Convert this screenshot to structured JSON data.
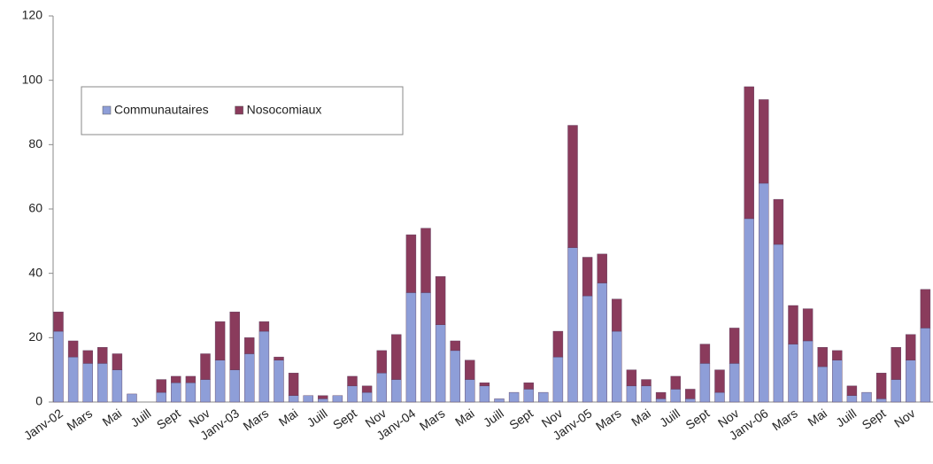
{
  "chart_data": {
    "type": "stacked_bar",
    "categories": [
      "Janv-02",
      null,
      "Mars",
      null,
      "Mai",
      null,
      "Juill",
      null,
      "Sept",
      null,
      "Nov",
      null,
      "Janv-03",
      null,
      "Mars",
      null,
      "Mai",
      null,
      "Juill",
      null,
      "Sept",
      null,
      "Nov",
      null,
      "Janv-04",
      null,
      "Mars",
      null,
      "Mai",
      null,
      "Juill",
      null,
      "Sept",
      null,
      "Nov",
      null,
      "Janv-05",
      null,
      "Mars",
      null,
      "Mai",
      null,
      "Juill",
      null,
      "Sept",
      null,
      "Nov",
      null,
      "Janv-06",
      null,
      "Mars",
      null,
      "Mai",
      null,
      "Juill",
      null,
      "Sept",
      null,
      "Nov",
      null
    ],
    "series": [
      {
        "name": "Communautaires",
        "color": "#8e9ed8",
        "values": [
          22,
          14,
          12,
          12,
          10,
          2.5,
          0,
          3,
          6,
          6,
          7,
          13,
          10,
          15,
          22,
          13,
          2,
          2,
          1,
          2,
          5,
          3,
          9,
          7,
          34,
          34,
          24,
          16,
          7,
          5,
          1,
          3,
          4,
          3,
          14,
          48,
          33,
          37,
          22,
          5,
          5,
          1,
          4,
          1,
          12,
          3,
          12,
          57,
          68,
          49,
          18,
          19,
          11,
          13,
          2,
          3,
          1,
          7,
          13,
          23
        ]
      },
      {
        "name": "Nosocomiaux",
        "color": "#8a3b5c",
        "values": [
          6,
          5,
          4,
          5,
          5,
          0,
          0,
          4,
          2,
          2,
          8,
          12,
          18,
          5,
          3,
          1,
          7,
          0,
          1,
          0,
          3,
          2,
          7,
          14,
          18,
          20,
          15,
          3,
          6,
          1,
          0,
          0,
          2,
          0,
          8,
          38,
          12,
          9,
          10,
          5,
          2,
          2,
          4,
          3,
          6,
          7,
          11,
          41,
          26,
          14,
          12,
          10,
          6,
          3,
          3,
          0,
          8,
          10,
          8,
          12
        ]
      }
    ],
    "ylim": [
      0,
      120
    ],
    "yticks": [
      0,
      20,
      40,
      60,
      80,
      100,
      120
    ],
    "grid": false
  }
}
